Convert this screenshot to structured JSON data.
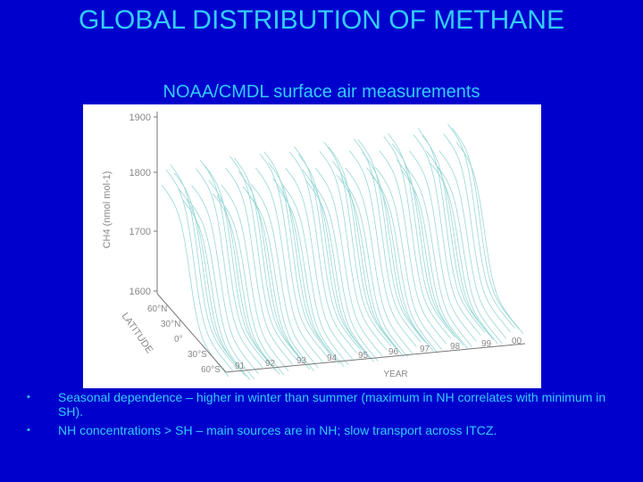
{
  "slide": {
    "title": "GLOBAL DISTRIBUTION OF METHANE",
    "subtitle": "NOAA/CMDL surface air measurements",
    "bullet_symbol": "•",
    "bullets": [
      "Seasonal dependence – higher in winter than summer (maximum in NH correlates with minimum in SH).",
      "NH concentrations > SH – main sources are in NH; slow transport across ITCZ."
    ]
  },
  "figure": {
    "ylabel": "CH4 (nmol mol-1)",
    "ytick_labels": [
      "1900",
      "1800",
      "1700",
      "1600"
    ],
    "latitude_label": "LATITUDE",
    "latitude_tick_labels": [
      "60°N",
      "30°N",
      "0°",
      "30°S",
      "60°S"
    ],
    "year_label": "YEAR",
    "year_tick_labels": [
      "91",
      "92",
      "93",
      "94",
      "95",
      "96",
      "97",
      "98",
      "99",
      "00"
    ],
    "surface_color": "#99d6d6"
  }
}
